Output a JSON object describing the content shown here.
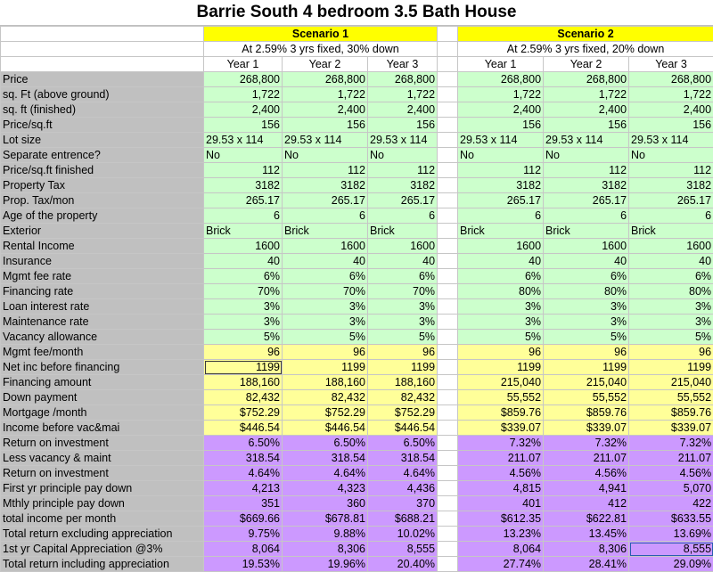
{
  "title": "Barrie South 4 bedroom 3.5 Bath House",
  "scenarios": [
    {
      "name": "Scenario 1",
      "description": "At 2.59% 3 yrs fixed, 30% down",
      "years": [
        "Year 1",
        "Year 2",
        "Year 3"
      ]
    },
    {
      "name": "Scenario 2",
      "description": "At 2.59% 3 yrs fixed, 20% down",
      "years": [
        "Year 1",
        "Year 2",
        "Year 3"
      ]
    }
  ],
  "rows": [
    {
      "label": "Price",
      "color": "green",
      "align": "num",
      "values": [
        "268,800",
        "268,800",
        "268,800",
        "268,800",
        "268,800",
        "268,800"
      ]
    },
    {
      "label": "sq. Ft (above ground)",
      "color": "green",
      "align": "num",
      "values": [
        "1,722",
        "1,722",
        "1,722",
        "1,722",
        "1,722",
        "1,722"
      ]
    },
    {
      "label": "sq. ft (finished)",
      "color": "green",
      "align": "num",
      "values": [
        "2,400",
        "2,400",
        "2,400",
        "2,400",
        "2,400",
        "2,400"
      ]
    },
    {
      "label": "Price/sq.ft",
      "color": "green",
      "align": "num",
      "values": [
        "156",
        "156",
        "156",
        "156",
        "156",
        "156"
      ]
    },
    {
      "label": "Lot size",
      "color": "green",
      "align": "txt",
      "values": [
        "29.53 x 114",
        "29.53 x 114",
        "29.53 x 114",
        "29.53 x 114",
        "29.53 x 114",
        "29.53 x 114"
      ]
    },
    {
      "label": "Separate entrence?",
      "color": "green",
      "align": "txt",
      "values": [
        "No",
        "No",
        "No",
        "No",
        "No",
        "No"
      ]
    },
    {
      "label": "Price/sq.ft finished",
      "color": "green",
      "align": "num",
      "values": [
        "112",
        "112",
        "112",
        "112",
        "112",
        "112"
      ]
    },
    {
      "label": "Property Tax",
      "color": "green",
      "align": "num",
      "values": [
        "3182",
        "3182",
        "3182",
        "3182",
        "3182",
        "3182"
      ]
    },
    {
      "label": "Prop. Tax/mon",
      "color": "green",
      "align": "num",
      "values": [
        "265.17",
        "265.17",
        "265.17",
        "265.17",
        "265.17",
        "265.17"
      ]
    },
    {
      "label": "Age of the property",
      "color": "green",
      "align": "num",
      "values": [
        "6",
        "6",
        "6",
        "6",
        "6",
        "6"
      ]
    },
    {
      "label": "Exterior",
      "color": "green",
      "align": "txt",
      "values": [
        "Brick",
        "Brick",
        "Brick",
        "Brick",
        "Brick",
        "Brick"
      ]
    },
    {
      "label": "Rental Income",
      "color": "green",
      "align": "num",
      "values": [
        "1600",
        "1600",
        "1600",
        "1600",
        "1600",
        "1600"
      ]
    },
    {
      "label": "Insurance",
      "color": "green",
      "align": "num",
      "values": [
        "40",
        "40",
        "40",
        "40",
        "40",
        "40"
      ]
    },
    {
      "label": "Mgmt fee rate",
      "color": "green",
      "align": "num",
      "values": [
        "6%",
        "6%",
        "6%",
        "6%",
        "6%",
        "6%"
      ]
    },
    {
      "label": "Financing rate",
      "color": "green",
      "align": "num",
      "values": [
        "70%",
        "70%",
        "70%",
        "80%",
        "80%",
        "80%"
      ]
    },
    {
      "label": "Loan interest rate",
      "color": "green",
      "align": "num",
      "values": [
        "3%",
        "3%",
        "3%",
        "3%",
        "3%",
        "3%"
      ]
    },
    {
      "label": "Maintenance rate",
      "color": "green",
      "align": "num",
      "values": [
        "3%",
        "3%",
        "3%",
        "3%",
        "3%",
        "3%"
      ]
    },
    {
      "label": "Vacancy allowance",
      "color": "green",
      "align": "num",
      "values": [
        "5%",
        "5%",
        "5%",
        "5%",
        "5%",
        "5%"
      ]
    },
    {
      "label": "Mgmt fee/month",
      "color": "yellow",
      "align": "num",
      "values": [
        "96",
        "96",
        "96",
        "96",
        "96",
        "96"
      ]
    },
    {
      "label": "Net inc before financing",
      "color": "yellow",
      "align": "num",
      "values": [
        "1199",
        "1199",
        "1199",
        "1199",
        "1199",
        "1199"
      ]
    },
    {
      "label": "Financing amount",
      "color": "yellow",
      "align": "num",
      "values": [
        "188,160",
        "188,160",
        "188,160",
        "215,040",
        "215,040",
        "215,040"
      ]
    },
    {
      "label": "Down payment",
      "color": "yellow",
      "align": "num",
      "values": [
        "82,432",
        "82,432",
        "82,432",
        "55,552",
        "55,552",
        "55,552"
      ]
    },
    {
      "label": "Mortgage /month",
      "color": "yellow",
      "align": "num",
      "values": [
        "$752.29",
        "$752.29",
        "$752.29",
        "$859.76",
        "$859.76",
        "$859.76"
      ]
    },
    {
      "label": "Income before vac&mai",
      "color": "yellow",
      "align": "num",
      "values": [
        "$446.54",
        "$446.54",
        "$446.54",
        "$339.07",
        "$339.07",
        "$339.07"
      ]
    },
    {
      "label": "Return on investment",
      "color": "purple",
      "align": "num",
      "values": [
        "6.50%",
        "6.50%",
        "6.50%",
        "7.32%",
        "7.32%",
        "7.32%"
      ]
    },
    {
      "label": "Less vacancy & maint",
      "color": "purple",
      "align": "num",
      "values": [
        "318.54",
        "318.54",
        "318.54",
        "211.07",
        "211.07",
        "211.07"
      ]
    },
    {
      "label": "Return on investment",
      "color": "purple",
      "align": "num",
      "values": [
        "4.64%",
        "4.64%",
        "4.64%",
        "4.56%",
        "4.56%",
        "4.56%"
      ]
    },
    {
      "label": "First yr principle pay down",
      "color": "purple",
      "align": "num",
      "values": [
        "4,213",
        "4,323",
        "4,436",
        "4,815",
        "4,941",
        "5,070"
      ]
    },
    {
      "label": "Mthly principle pay down",
      "color": "purple",
      "align": "num",
      "values": [
        "351",
        "360",
        "370",
        "401",
        "412",
        "422"
      ]
    },
    {
      "label": "total income per month",
      "color": "purple",
      "align": "num",
      "values": [
        "$669.66",
        "$678.81",
        "$688.21",
        "$612.35",
        "$622.81",
        "$633.55"
      ]
    },
    {
      "label": "Total return excluding appreciation",
      "color": "purple",
      "align": "num",
      "values": [
        "9.75%",
        "9.88%",
        "10.02%",
        "13.23%",
        "13.45%",
        "13.69%"
      ]
    },
    {
      "label": "1st yr Capital Appreciation @3%",
      "color": "purple",
      "align": "num",
      "values": [
        "8,064",
        "8,306",
        "8,555",
        "8,064",
        "8,306",
        "8,555"
      ]
    },
    {
      "label": "Total return including appreciation",
      "color": "purple",
      "align": "num",
      "values": [
        "19.53%",
        "19.96%",
        "20.40%",
        "27.74%",
        "28.41%",
        "29.09%"
      ]
    }
  ]
}
